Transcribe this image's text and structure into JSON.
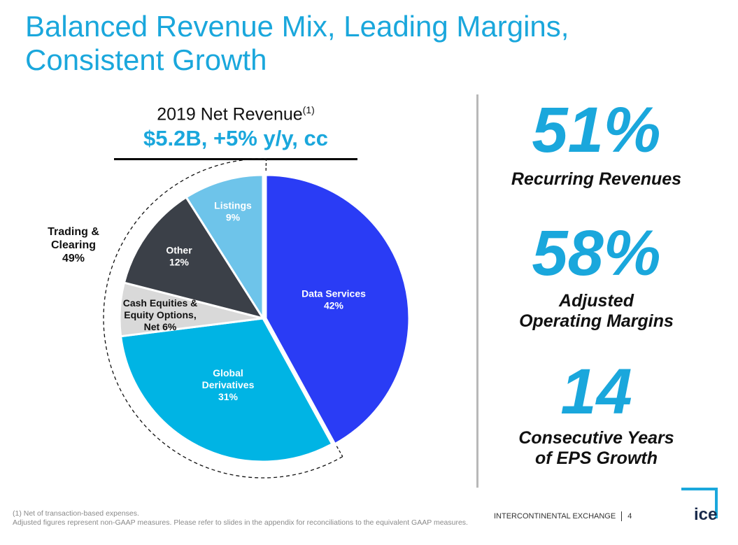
{
  "title": "Balanced Revenue Mix, Leading Margins, Consistent Growth",
  "chart_header": {
    "label": "2019 Net Revenue",
    "footnote_marker": "(1)",
    "value": "$5.2B, +5% y/y, cc"
  },
  "chart_data": {
    "type": "pie",
    "title": "2019 Net Revenue",
    "slices": [
      {
        "label": "Data Services",
        "value": 42,
        "color": "#2a3cf5",
        "text_color": "#ffffff"
      },
      {
        "label": "Global Derivatives",
        "value": 31,
        "color": "#00b4e4",
        "text_color": "#ffffff"
      },
      {
        "label": "Cash Equities & Equity Options, Net",
        "value": 6,
        "color": "#d9d9d9",
        "text_color": "#111111"
      },
      {
        "label": "Other",
        "value": 12,
        "color": "#3b4048",
        "text_color": "#ffffff"
      },
      {
        "label": "Listings",
        "value": 9,
        "color": "#6ec4ea",
        "text_color": "#ffffff"
      }
    ],
    "slice_labels": [
      [
        "Data Services",
        "42%"
      ],
      [
        "Global",
        "Derivatives",
        "31%"
      ],
      [
        "Cash Equities &",
        "Equity Options,",
        "Net 6%"
      ],
      [
        "Other",
        "12%"
      ],
      [
        "Listings",
        "9%"
      ]
    ],
    "group": {
      "label_lines": [
        "Trading &",
        "Clearing",
        "49%"
      ],
      "value": 49
    }
  },
  "stats": [
    {
      "number": "51%",
      "label_lines": [
        "Recurring Revenues"
      ]
    },
    {
      "number": "58%",
      "label_lines": [
        "Adjusted",
        "Operating Margins"
      ]
    },
    {
      "number": "14",
      "label_lines": [
        "Consecutive Years",
        "of EPS Growth"
      ]
    }
  ],
  "footnote": {
    "line1": "(1) Net of transaction-based expenses.",
    "line2": "Adjusted figures represent non-GAAP measures. Please refer to slides in the appendix for reconciliations to the equivalent GAAP measures."
  },
  "footer": {
    "company": "INTERCONTINENTAL EXCHANGE",
    "page": "4"
  },
  "logo": {
    "text": "ice",
    "color": "#1aa7dc"
  }
}
